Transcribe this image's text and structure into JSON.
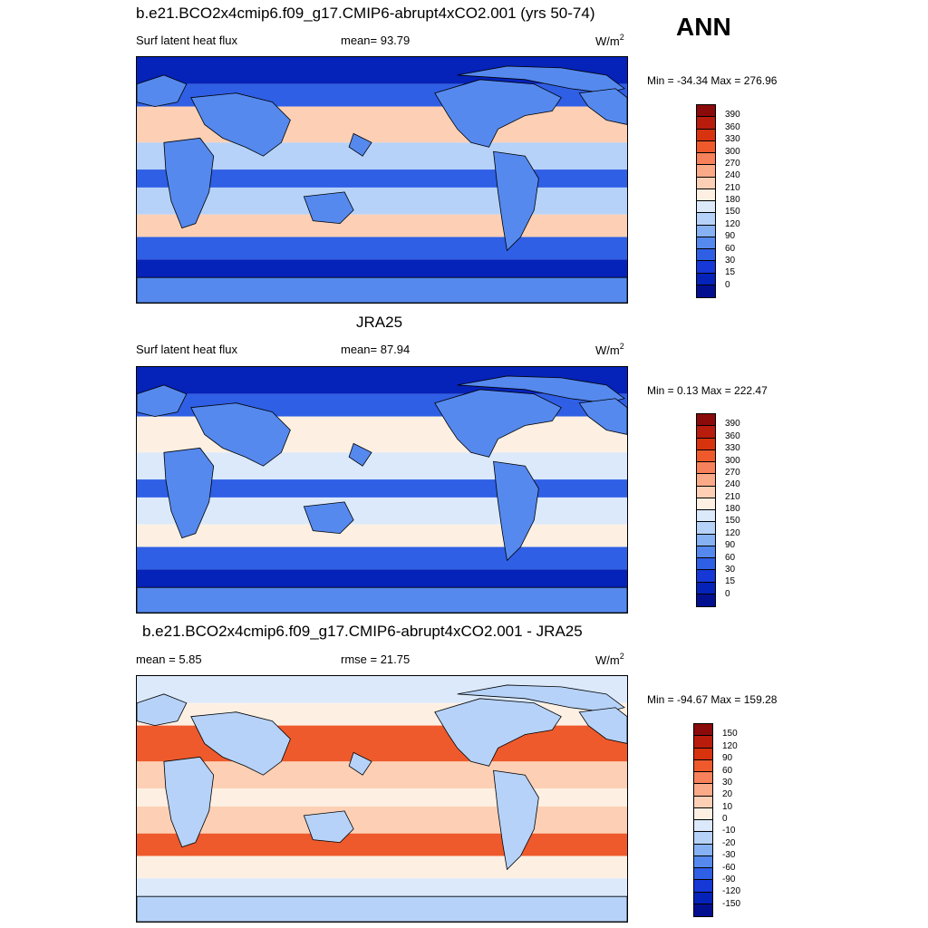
{
  "season": "ANN",
  "panels": [
    {
      "title": "b.e21.BCO2x4cmip6.f09_g17.CMIP6-abrupt4xCO2.001 (yrs 50-74)",
      "left_label": "Surf latent heat flux",
      "mid_label": "mean=  93.79",
      "units": "W/m",
      "units_sup": "2",
      "minmax": "Min = -34.34 Max = 276.96",
      "colorbar": {
        "labels": [
          "390",
          "360",
          "330",
          "300",
          "270",
          "240",
          "210",
          "180",
          "150",
          "120",
          "90",
          "60",
          "30",
          "15",
          "0"
        ],
        "colors": [
          "#8b0a0a",
          "#b81c0c",
          "#d8330f",
          "#ee5a2c",
          "#f7815b",
          "#fbaa87",
          "#fdd0b5",
          "#fdf0e3",
          "#dbe9fb",
          "#b6d2f8",
          "#86b2f3",
          "#5589ee",
          "#2f5fe5",
          "#1538d6",
          "#0522b9",
          "#021090"
        ]
      },
      "map_tones": {
        "base": "#2f5fe5",
        "pole": "#0522b9",
        "tropics": "#b6d2f8",
        "subtropic_high": "#fdd0b5",
        "land": "#5589ee"
      }
    },
    {
      "title": "JRA25",
      "left_label": "Surf latent heat flux",
      "mid_label": "mean=  87.94",
      "units": "W/m",
      "units_sup": "2",
      "minmax": "Min =   0.13 Max = 222.47",
      "colorbar": {
        "labels": [
          "390",
          "360",
          "330",
          "300",
          "270",
          "240",
          "210",
          "180",
          "150",
          "120",
          "90",
          "60",
          "30",
          "15",
          "0"
        ],
        "colors": [
          "#8b0a0a",
          "#b81c0c",
          "#d8330f",
          "#ee5a2c",
          "#f7815b",
          "#fbaa87",
          "#fdd0b5",
          "#fdf0e3",
          "#dbe9fb",
          "#b6d2f8",
          "#86b2f3",
          "#5589ee",
          "#2f5fe5",
          "#1538d6",
          "#0522b9",
          "#021090"
        ]
      },
      "map_tones": {
        "base": "#2f5fe5",
        "pole": "#0522b9",
        "tropics": "#dbe9fb",
        "subtropic_high": "#fdf0e3",
        "land": "#5589ee"
      }
    },
    {
      "title": "b.e21.BCO2x4cmip6.f09_g17.CMIP6-abrupt4xCO2.001 - JRA25",
      "left_label": "mean =   5.85",
      "mid_label": "rmse =  21.75",
      "units": "W/m",
      "units_sup": "2",
      "minmax": "Min = -94.67 Max = 159.28",
      "colorbar": {
        "labels": [
          "150",
          "120",
          "90",
          "60",
          "30",
          "20",
          "10",
          "0",
          "-10",
          "-20",
          "-30",
          "-60",
          "-90",
          "-120",
          "-150"
        ],
        "colors": [
          "#8b0a0a",
          "#b81c0c",
          "#d8330f",
          "#ee5a2c",
          "#f7815b",
          "#fbaa87",
          "#fdd0b5",
          "#fdf0e3",
          "#dbe9fb",
          "#b6d2f8",
          "#86b2f3",
          "#5589ee",
          "#2f5fe5",
          "#1538d6",
          "#0522b9",
          "#021090"
        ]
      },
      "map_tones": {
        "base": "#fdf0e3",
        "pole": "#dbe9fb",
        "tropics": "#fdd0b5",
        "subtropic_high": "#ee5a2c",
        "land": "#b6d2f8"
      }
    }
  ]
}
